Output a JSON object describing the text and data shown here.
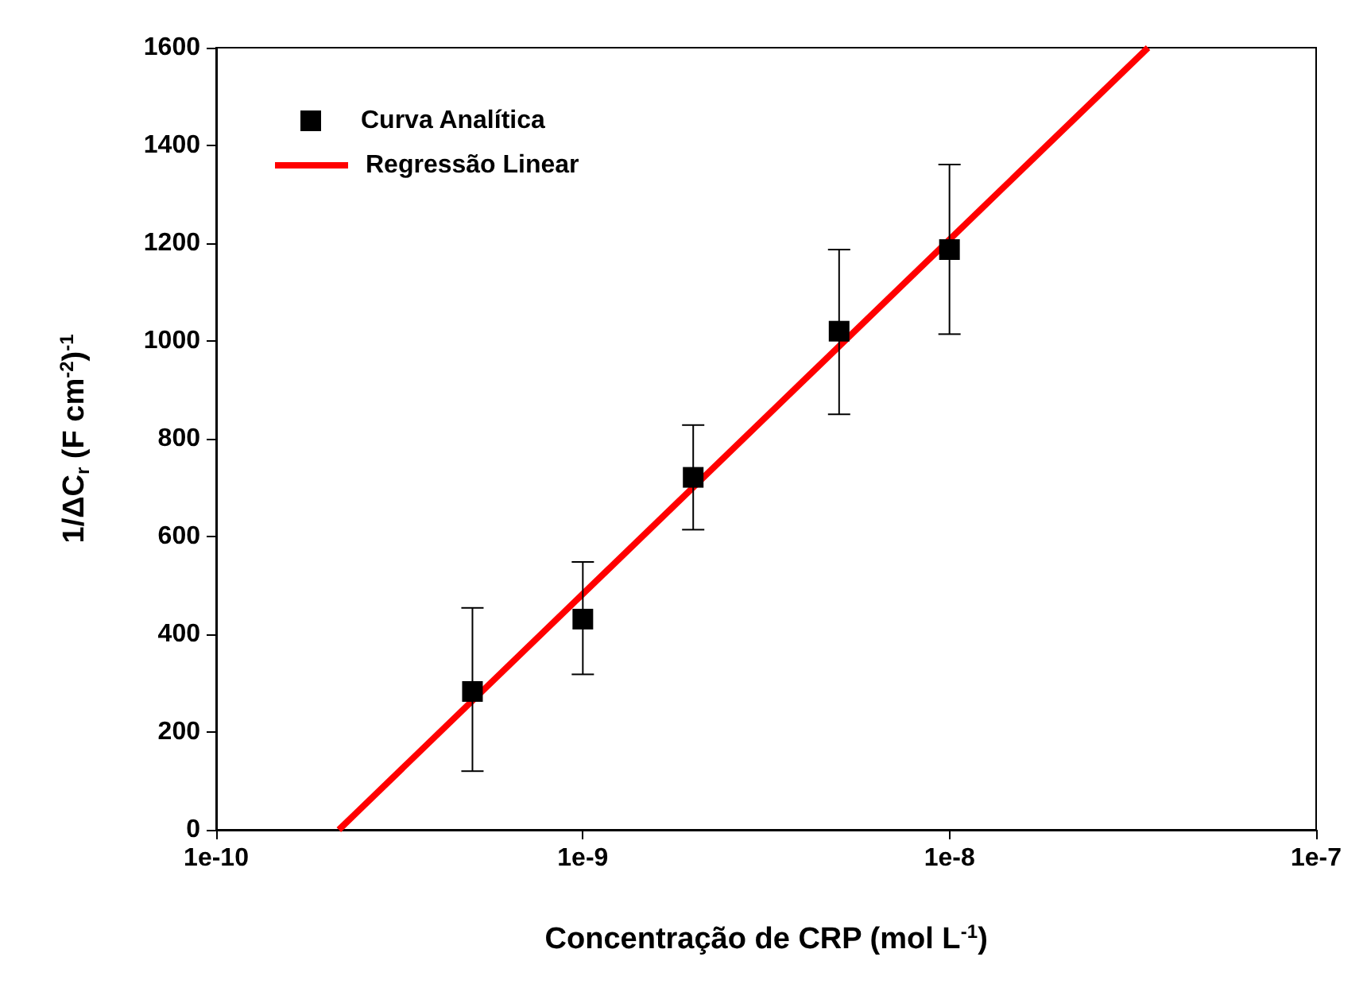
{
  "chart_data": {
    "type": "scatter",
    "xlabel": "Concentração de CRP (mol L$^{-1}$)",
    "ylabel": "1/ΔC$_{r}$ (F cm$^{-2}$)$^{-1}$",
    "log": "x",
    "xlim": [
      1e-10,
      1e-07
    ],
    "xticks": [
      {
        "value": 1e-10,
        "label": "1e-10"
      },
      {
        "value": 1e-09,
        "label": "1e-9"
      },
      {
        "value": 1e-08,
        "label": "1e-8"
      },
      {
        "value": 1e-07,
        "label": "1e-7"
      }
    ],
    "ylim": [
      0,
      1600
    ],
    "yticks": [
      0,
      200,
      400,
      600,
      800,
      1000,
      1200,
      1400,
      1600
    ],
    "grid": false,
    "legend": "top left",
    "series": [
      {
        "name": "Curva Analítica",
        "color": "#000000",
        "marker": "square",
        "x": [
          5e-10,
          1e-09,
          2e-09,
          5e-09,
          1e-08
        ],
        "values": [
          283,
          431,
          721,
          1020,
          1187
        ],
        "errors": [
          [
            120,
            454
          ],
          [
            318,
            548
          ],
          [
            614,
            828
          ],
          [
            850,
            1187
          ],
          [
            1014,
            1361
          ]
        ]
      },
      {
        "name": "Regressão Linear",
        "type": "line",
        "color": "#ff0000",
        "marker": "none",
        "line_style": "solid",
        "x": [
          2.16e-10,
          3.48e-08
        ],
        "values": [
          0,
          1600
        ]
      }
    ]
  }
}
